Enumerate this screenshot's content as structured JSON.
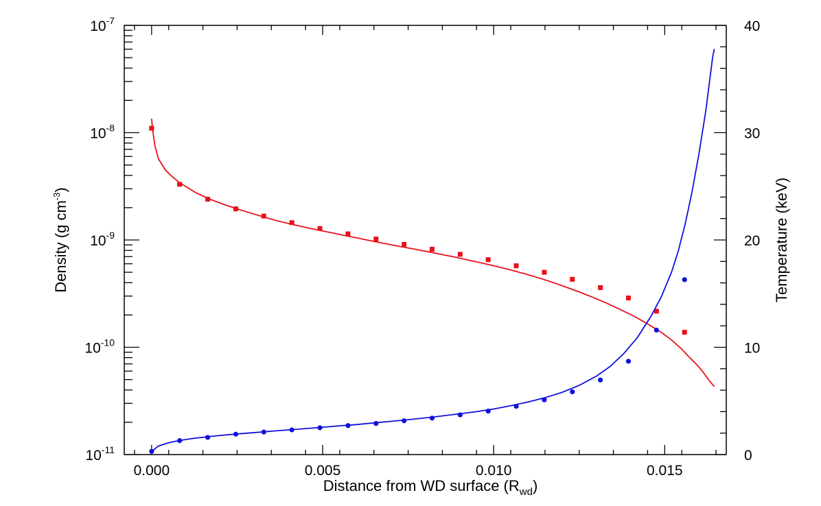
{
  "chart_data": {
    "type": "line",
    "title": "",
    "x_axis": {
      "label": "Distance from WD surface (R",
      "label_subscript": "wd",
      "label_suffix": ")",
      "range": [
        -0.0008,
        0.0168
      ],
      "ticks": [
        0.0,
        0.005,
        0.01,
        0.015
      ],
      "tick_labels": [
        "0.000",
        "0.005",
        "0.010",
        "0.015"
      ]
    },
    "y_left": {
      "label": "Density (g cm",
      "label_superscript": "-3",
      "label_suffix": ")",
      "scale": "log",
      "range": [
        1e-11,
        1e-07
      ],
      "ticks": [
        {
          "base": "10",
          "exp": "-11",
          "value": 1e-11
        },
        {
          "base": "10",
          "exp": "-10",
          "value": 1e-10
        },
        {
          "base": "10",
          "exp": "-9",
          "value": 1e-09
        },
        {
          "base": "10",
          "exp": "-8",
          "value": 1e-08
        },
        {
          "base": "10",
          "exp": "-7",
          "value": 1e-07
        }
      ]
    },
    "y_right": {
      "label": "Temperature (keV)",
      "scale": "linear",
      "range": [
        0,
        40
      ],
      "ticks": [
        0,
        10,
        20,
        30,
        40
      ],
      "tick_labels": [
        "0",
        "10",
        "20",
        "30",
        "40"
      ]
    },
    "series": [
      {
        "axis": "left",
        "color": "#e8101a",
        "marker": "square",
        "curve": [
          [
            0.0,
            1.35e-08
          ],
          [
            2e-05,
            1.15e-08
          ],
          [
            5e-05,
            9.5e-09
          ],
          [
            0.0001,
            7.5e-09
          ],
          [
            0.0002,
            5.7e-09
          ],
          [
            0.0004,
            4.5e-09
          ],
          [
            0.0006,
            3.9e-09
          ],
          [
            0.0008,
            3.45e-09
          ],
          [
            0.001,
            3.15e-09
          ],
          [
            0.0013,
            2.75e-09
          ],
          [
            0.0017,
            2.4e-09
          ],
          [
            0.0021,
            2.15e-09
          ],
          [
            0.0025,
            1.95e-09
          ],
          [
            0.0029,
            1.78e-09
          ],
          [
            0.0033,
            1.63e-09
          ],
          [
            0.0037,
            1.5e-09
          ],
          [
            0.0041,
            1.4e-09
          ],
          [
            0.0045,
            1.31e-09
          ],
          [
            0.0049,
            1.23e-09
          ],
          [
            0.0053,
            1.16e-09
          ],
          [
            0.0057,
            1.09e-09
          ],
          [
            0.0061,
            1.03e-09
          ],
          [
            0.0065,
            9.7e-10
          ],
          [
            0.0069,
            9.15e-10
          ],
          [
            0.0073,
            8.65e-10
          ],
          [
            0.0077,
            8.2e-10
          ],
          [
            0.0081,
            7.75e-10
          ],
          [
            0.0085,
            7.3e-10
          ],
          [
            0.0089,
            6.9e-10
          ],
          [
            0.0093,
            6.45e-10
          ],
          [
            0.0097,
            6.05e-10
          ],
          [
            0.0101,
            5.65e-10
          ],
          [
            0.0105,
            5.25e-10
          ],
          [
            0.0109,
            4.85e-10
          ],
          [
            0.0113,
            4.45e-10
          ],
          [
            0.0117,
            4.05e-10
          ],
          [
            0.0121,
            3.65e-10
          ],
          [
            0.0125,
            3.28e-10
          ],
          [
            0.0129,
            2.92e-10
          ],
          [
            0.0133,
            2.58e-10
          ],
          [
            0.0137,
            2.25e-10
          ],
          [
            0.0141,
            1.95e-10
          ],
          [
            0.0145,
            1.65e-10
          ],
          [
            0.0149,
            1.38e-10
          ],
          [
            0.0152,
            1.17e-10
          ],
          [
            0.0155,
            9.6e-11
          ],
          [
            0.0157,
            8.2e-11
          ],
          [
            0.0159,
            7.1e-11
          ],
          [
            0.0161,
            6e-11
          ],
          [
            0.0163,
            4.9e-11
          ],
          [
            0.01645,
            4.3e-11
          ]
        ],
        "points": [
          [
            0.0,
            1.1e-08
          ],
          [
            0.00082,
            3.3e-09
          ],
          [
            0.00164,
            2.4e-09
          ],
          [
            0.00246,
            1.95e-09
          ],
          [
            0.00328,
            1.67e-09
          ],
          [
            0.0041,
            1.45e-09
          ],
          [
            0.00492,
            1.28e-09
          ],
          [
            0.00574,
            1.14e-09
          ],
          [
            0.00656,
            1.02e-09
          ],
          [
            0.00738,
            9.1e-10
          ],
          [
            0.0082,
            8.2e-10
          ],
          [
            0.00902,
            7.35e-10
          ],
          [
            0.00984,
            6.55e-10
          ],
          [
            0.01066,
            5.75e-10
          ],
          [
            0.01148,
            5e-10
          ],
          [
            0.0123,
            4.3e-10
          ],
          [
            0.01312,
            3.6e-10
          ],
          [
            0.01394,
            2.88e-10
          ],
          [
            0.01476,
            2.17e-10
          ],
          [
            0.01558,
            1.38e-10
          ]
        ]
      },
      {
        "axis": "right",
        "color": "#1010dd",
        "marker": "circle",
        "curve": [
          [
            0.0,
            0.3
          ],
          [
            0.0002,
            0.8
          ],
          [
            0.0005,
            1.1
          ],
          [
            0.0008,
            1.3
          ],
          [
            0.0012,
            1.5
          ],
          [
            0.0016,
            1.65
          ],
          [
            0.002,
            1.78
          ],
          [
            0.0025,
            1.92
          ],
          [
            0.003,
            2.05
          ],
          [
            0.0035,
            2.18
          ],
          [
            0.004,
            2.3
          ],
          [
            0.0045,
            2.42
          ],
          [
            0.005,
            2.55
          ],
          [
            0.0055,
            2.68
          ],
          [
            0.006,
            2.8
          ],
          [
            0.0065,
            2.95
          ],
          [
            0.007,
            3.1
          ],
          [
            0.0075,
            3.25
          ],
          [
            0.008,
            3.42
          ],
          [
            0.0085,
            3.6
          ],
          [
            0.009,
            3.8
          ],
          [
            0.0095,
            4.0
          ],
          [
            0.01,
            4.25
          ],
          [
            0.0105,
            4.55
          ],
          [
            0.011,
            4.9
          ],
          [
            0.0115,
            5.3
          ],
          [
            0.012,
            5.8
          ],
          [
            0.0125,
            6.45
          ],
          [
            0.013,
            7.3
          ],
          [
            0.0134,
            8.2
          ],
          [
            0.0138,
            9.4
          ],
          [
            0.0142,
            10.9
          ],
          [
            0.0146,
            12.9
          ],
          [
            0.0149,
            14.7
          ],
          [
            0.0152,
            17.0
          ],
          [
            0.0154,
            19.0
          ],
          [
            0.0156,
            21.5
          ],
          [
            0.0158,
            24.5
          ],
          [
            0.016,
            28.0
          ],
          [
            0.0162,
            32.0
          ],
          [
            0.0164,
            37.0
          ],
          [
            0.01645,
            37.8
          ]
        ],
        "points": [
          [
            0.0,
            0.3
          ],
          [
            0.00082,
            1.3
          ],
          [
            0.00164,
            1.6
          ],
          [
            0.00246,
            1.9
          ],
          [
            0.00328,
            2.1
          ],
          [
            0.0041,
            2.3
          ],
          [
            0.00492,
            2.5
          ],
          [
            0.00574,
            2.7
          ],
          [
            0.00656,
            2.9
          ],
          [
            0.00738,
            3.15
          ],
          [
            0.0082,
            3.4
          ],
          [
            0.00902,
            3.7
          ],
          [
            0.00984,
            4.05
          ],
          [
            0.01066,
            4.5
          ],
          [
            0.01148,
            5.1
          ],
          [
            0.0123,
            5.85
          ],
          [
            0.01312,
            6.95
          ],
          [
            0.01394,
            8.7
          ],
          [
            0.01476,
            11.6
          ],
          [
            0.01558,
            16.3
          ]
        ]
      }
    ]
  }
}
